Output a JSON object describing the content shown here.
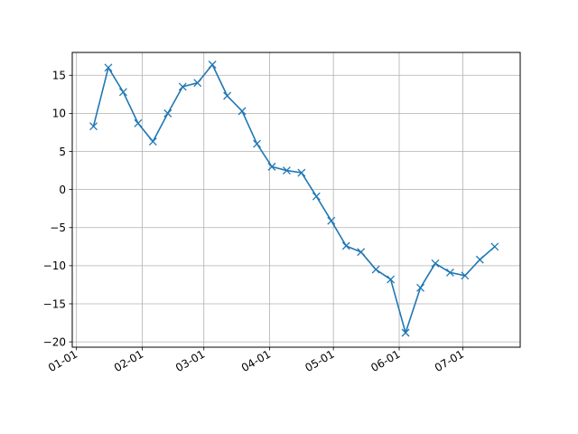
{
  "chart_data": {
    "type": "line",
    "title": "",
    "xlabel": "",
    "ylabel": "",
    "x_tick_labels": [
      "01-01",
      "02-01",
      "03-01",
      "04-01",
      "05-01",
      "06-01",
      "07-01"
    ],
    "x_tick_dates": [
      "2000-01-01",
      "2000-02-01",
      "2000-03-01",
      "2000-04-01",
      "2000-05-01",
      "2000-06-01",
      "2000-07-01"
    ],
    "y_ticks": [
      -20,
      -15,
      -10,
      -5,
      0,
      5,
      10,
      15
    ],
    "xlim": [
      "1999-12-30",
      "2000-07-28"
    ],
    "ylim": [
      -20.7,
      18.0
    ],
    "grid": true,
    "legend": "none",
    "series": [
      {
        "color": "#1f77b4",
        "marker": "x",
        "x": [
          "2000-01-09",
          "2000-01-16",
          "2000-01-23",
          "2000-01-30",
          "2000-02-06",
          "2000-02-13",
          "2000-02-20",
          "2000-02-27",
          "2000-03-05",
          "2000-03-12",
          "2000-03-19",
          "2000-03-26",
          "2000-04-02",
          "2000-04-09",
          "2000-04-16",
          "2000-04-23",
          "2000-04-30",
          "2000-05-07",
          "2000-05-14",
          "2000-05-21",
          "2000-05-28",
          "2000-06-04",
          "2000-06-11",
          "2000-06-18",
          "2000-06-25",
          "2000-07-02",
          "2000-07-09",
          "2000-07-16"
        ],
        "y": [
          8.3,
          16.0,
          12.8,
          8.7,
          6.3,
          10.0,
          13.5,
          14.0,
          16.4,
          12.3,
          10.3,
          6.0,
          3.0,
          2.5,
          2.2,
          -0.9,
          -4.1,
          -7.4,
          -8.2,
          -10.5,
          -11.8,
          -18.8,
          -12.9,
          -9.7,
          -10.9,
          -11.3,
          -9.2,
          -7.5
        ]
      }
    ]
  }
}
